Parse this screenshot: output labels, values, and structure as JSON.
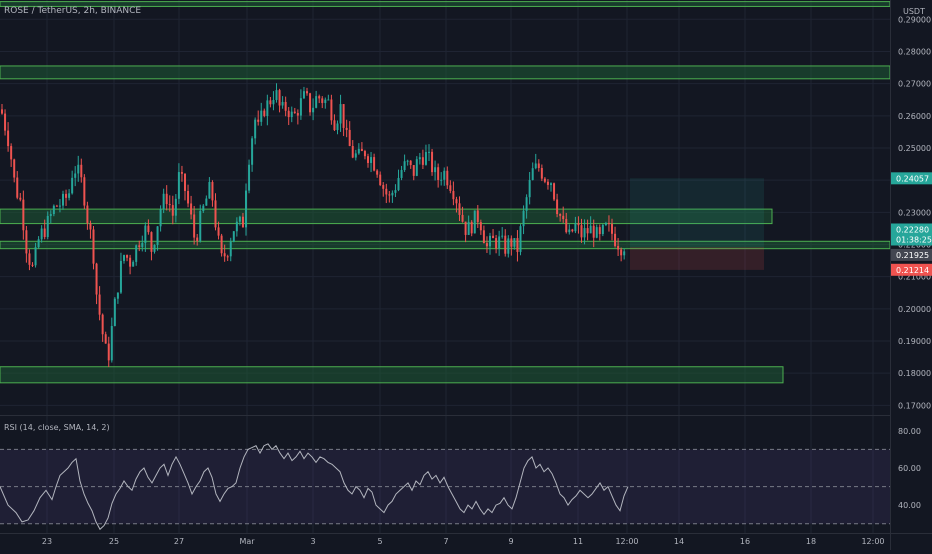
{
  "header": {
    "symbol": "ROSE / TetherUS, 2h, BINANCE",
    "currency": "USDT"
  },
  "colors": {
    "background": "#131722",
    "grid": "#1f2433",
    "up": "#26a69a",
    "down": "#ef5350",
    "zone_fill": "#1e5a35",
    "zone_stroke": "#4caf50",
    "rsi": "#b2b5be",
    "rsi_band": "#7e57c2",
    "axis_text": "#b2b5be"
  },
  "chart_data": [
    {
      "type": "candlestick",
      "title": "ROSE / TetherUS, 2h, BINANCE",
      "ylim": [
        0.167,
        0.296
      ],
      "y_ticks": [
        "0.29000",
        "0.28000",
        "0.27000",
        "0.26000",
        "0.25000",
        "0.24000",
        "0.23000",
        "0.22000",
        "0.21000",
        "0.20000",
        "0.19000",
        "0.18000",
        "0.17000"
      ],
      "x_ticks": [
        "23",
        "25",
        "27",
        "Mar",
        "3",
        "5",
        "7",
        "9",
        "11",
        "12:00",
        "14",
        "16",
        "18",
        "12:00"
      ],
      "zones": [
        {
          "from": 0.294,
          "to": 0.2955,
          "end": "full"
        },
        {
          "from": 0.2715,
          "to": 0.2755,
          "end": "full"
        },
        {
          "from": 0.2265,
          "to": 0.231,
          "end": "partial"
        },
        {
          "from": 0.2187,
          "to": 0.221,
          "end": "full"
        },
        {
          "from": 0.177,
          "to": 0.182,
          "end": "partial"
        }
      ],
      "position": {
        "entry": 0.2192,
        "target": 0.2406,
        "stop": 0.2121
      },
      "price_labels": [
        {
          "text": "0.24057",
          "value": 0.24057,
          "kind": "target"
        },
        {
          "text": "0.22280",
          "value": 0.2228,
          "kind": "last"
        },
        {
          "text": "01:38:25",
          "value": 0.2228,
          "kind": "countdown"
        },
        {
          "text": "0.21925",
          "value": 0.21925,
          "kind": "entry"
        },
        {
          "text": "0.21214",
          "value": 0.21214,
          "kind": "stop"
        }
      ],
      "price_path": [
        [
          0,
          0.262
        ],
        [
          8,
          0.252
        ],
        [
          14,
          0.238
        ],
        [
          20,
          0.233
        ],
        [
          26,
          0.218
        ],
        [
          32,
          0.212
        ],
        [
          38,
          0.222
        ],
        [
          46,
          0.226
        ],
        [
          54,
          0.232
        ],
        [
          62,
          0.233
        ],
        [
          68,
          0.236
        ],
        [
          72,
          0.244
        ],
        [
          76,
          0.243
        ],
        [
          82,
          0.238
        ],
        [
          86,
          0.229
        ],
        [
          92,
          0.219
        ],
        [
          96,
          0.203
        ],
        [
          100,
          0.196
        ],
        [
          104,
          0.187
        ],
        [
          108,
          0.186
        ],
        [
          112,
          0.197
        ],
        [
          116,
          0.206
        ],
        [
          120,
          0.213
        ],
        [
          124,
          0.218
        ],
        [
          128,
          0.214
        ],
        [
          134,
          0.218
        ],
        [
          140,
          0.223
        ],
        [
          146,
          0.225
        ],
        [
          150,
          0.218
        ],
        [
          154,
          0.223
        ],
        [
          160,
          0.232
        ],
        [
          166,
          0.235
        ],
        [
          172,
          0.229
        ],
        [
          178,
          0.241
        ],
        [
          184,
          0.237
        ],
        [
          190,
          0.228
        ],
        [
          194,
          0.221
        ],
        [
          198,
          0.226
        ],
        [
          204,
          0.233
        ],
        [
          210,
          0.238
        ],
        [
          214,
          0.228
        ],
        [
          220,
          0.215
        ],
        [
          226,
          0.218
        ],
        [
          232,
          0.225
        ],
        [
          238,
          0.226
        ],
        [
          242,
          0.227
        ],
        [
          246,
          0.243
        ],
        [
          250,
          0.252
        ],
        [
          254,
          0.259
        ],
        [
          258,
          0.255
        ],
        [
          262,
          0.262
        ],
        [
          268,
          0.264
        ],
        [
          274,
          0.268
        ],
        [
          280,
          0.261
        ],
        [
          286,
          0.263
        ],
        [
          292,
          0.259
        ],
        [
          298,
          0.263
        ],
        [
          304,
          0.266
        ],
        [
          310,
          0.262
        ],
        [
          316,
          0.266
        ],
        [
          322,
          0.265
        ],
        [
          328,
          0.264
        ],
        [
          334,
          0.258
        ],
        [
          340,
          0.263
        ],
        [
          346,
          0.252
        ],
        [
          352,
          0.248
        ],
        [
          358,
          0.247
        ],
        [
          364,
          0.249
        ],
        [
          370,
          0.247
        ],
        [
          376,
          0.244
        ],
        [
          382,
          0.238
        ],
        [
          388,
          0.234
        ],
        [
          394,
          0.238
        ],
        [
          400,
          0.243
        ],
        [
          406,
          0.245
        ],
        [
          412,
          0.242
        ],
        [
          418,
          0.247
        ],
        [
          424,
          0.248
        ],
        [
          430,
          0.245
        ],
        [
          436,
          0.24
        ],
        [
          442,
          0.243
        ],
        [
          448,
          0.24
        ],
        [
          454,
          0.236
        ],
        [
          460,
          0.229
        ],
        [
          466,
          0.224
        ],
        [
          472,
          0.227
        ],
        [
          478,
          0.229
        ],
        [
          482,
          0.224
        ],
        [
          486,
          0.219
        ],
        [
          492,
          0.221
        ],
        [
          498,
          0.221
        ],
        [
          504,
          0.219
        ],
        [
          510,
          0.221
        ],
        [
          516,
          0.218
        ],
        [
          520,
          0.225
        ],
        [
          526,
          0.235
        ],
        [
          532,
          0.243
        ],
        [
          538,
          0.244
        ],
        [
          544,
          0.241
        ],
        [
          550,
          0.24
        ],
        [
          556,
          0.232
        ],
        [
          562,
          0.226
        ],
        [
          568,
          0.222
        ],
        [
          574,
          0.226
        ],
        [
          580,
          0.223
        ],
        [
          586,
          0.224
        ],
        [
          592,
          0.225
        ],
        [
          598,
          0.221
        ],
        [
          604,
          0.225
        ],
        [
          610,
          0.224
        ],
        [
          616,
          0.221
        ],
        [
          622,
          0.219
        ],
        [
          626,
          0.2228
        ]
      ]
    },
    {
      "type": "line",
      "title": "RSI (14, close, SMA, 14, 2)",
      "ylim": [
        25,
        88
      ],
      "y_ticks": [
        "80.00",
        "60.00",
        "40.00"
      ],
      "bands": [
        70,
        50,
        30
      ],
      "values_path": [
        [
          0,
          50
        ],
        [
          8,
          40
        ],
        [
          16,
          36
        ],
        [
          22,
          31
        ],
        [
          28,
          32
        ],
        [
          34,
          37
        ],
        [
          40,
          44
        ],
        [
          46,
          48
        ],
        [
          52,
          43
        ],
        [
          56,
          50
        ],
        [
          60,
          56
        ],
        [
          64,
          58
        ],
        [
          68,
          60
        ],
        [
          72,
          63
        ],
        [
          76,
          65
        ],
        [
          80,
          53
        ],
        [
          84,
          46
        ],
        [
          88,
          41
        ],
        [
          92,
          37
        ],
        [
          96,
          31
        ],
        [
          100,
          27
        ],
        [
          104,
          29
        ],
        [
          108,
          33
        ],
        [
          112,
          41
        ],
        [
          116,
          46
        ],
        [
          120,
          49
        ],
        [
          124,
          53
        ],
        [
          128,
          50
        ],
        [
          132,
          48
        ],
        [
          136,
          54
        ],
        [
          140,
          58
        ],
        [
          144,
          60
        ],
        [
          148,
          55
        ],
        [
          152,
          52
        ],
        [
          156,
          56
        ],
        [
          160,
          60
        ],
        [
          164,
          62
        ],
        [
          168,
          56
        ],
        [
          172,
          62
        ],
        [
          176,
          66
        ],
        [
          180,
          62
        ],
        [
          184,
          57
        ],
        [
          188,
          52
        ],
        [
          192,
          46
        ],
        [
          196,
          50
        ],
        [
          200,
          53
        ],
        [
          204,
          58
        ],
        [
          208,
          60
        ],
        [
          212,
          55
        ],
        [
          216,
          46
        ],
        [
          220,
          42
        ],
        [
          224,
          46
        ],
        [
          228,
          49
        ],
        [
          232,
          50
        ],
        [
          236,
          52
        ],
        [
          240,
          60
        ],
        [
          244,
          66
        ],
        [
          248,
          70
        ],
        [
          252,
          71
        ],
        [
          256,
          72
        ],
        [
          260,
          68
        ],
        [
          264,
          72
        ],
        [
          268,
          73
        ],
        [
          272,
          70
        ],
        [
          276,
          72
        ],
        [
          280,
          68
        ],
        [
          284,
          65
        ],
        [
          288,
          68
        ],
        [
          292,
          64
        ],
        [
          296,
          66
        ],
        [
          300,
          69
        ],
        [
          304,
          65
        ],
        [
          308,
          68
        ],
        [
          312,
          66
        ],
        [
          316,
          63
        ],
        [
          320,
          66
        ],
        [
          324,
          65
        ],
        [
          328,
          63
        ],
        [
          332,
          62
        ],
        [
          336,
          60
        ],
        [
          340,
          58
        ],
        [
          344,
          52
        ],
        [
          348,
          48
        ],
        [
          352,
          46
        ],
        [
          356,
          50
        ],
        [
          360,
          48
        ],
        [
          364,
          44
        ],
        [
          368,
          49
        ],
        [
          372,
          47
        ],
        [
          376,
          40
        ],
        [
          380,
          38
        ],
        [
          384,
          36
        ],
        [
          388,
          40
        ],
        [
          392,
          42
        ],
        [
          396,
          46
        ],
        [
          400,
          48
        ],
        [
          404,
          50
        ],
        [
          408,
          52
        ],
        [
          412,
          48
        ],
        [
          416,
          53
        ],
        [
          420,
          51
        ],
        [
          424,
          56
        ],
        [
          428,
          58
        ],
        [
          432,
          54
        ],
        [
          436,
          56
        ],
        [
          440,
          52
        ],
        [
          444,
          55
        ],
        [
          448,
          50
        ],
        [
          452,
          46
        ],
        [
          456,
          42
        ],
        [
          460,
          38
        ],
        [
          464,
          36
        ],
        [
          468,
          40
        ],
        [
          472,
          38
        ],
        [
          476,
          42
        ],
        [
          480,
          38
        ],
        [
          484,
          35
        ],
        [
          488,
          38
        ],
        [
          492,
          36
        ],
        [
          496,
          40
        ],
        [
          500,
          41
        ],
        [
          504,
          44
        ],
        [
          508,
          40
        ],
        [
          512,
          38
        ],
        [
          516,
          44
        ],
        [
          520,
          52
        ],
        [
          524,
          60
        ],
        [
          528,
          64
        ],
        [
          532,
          66
        ],
        [
          536,
          60
        ],
        [
          540,
          62
        ],
        [
          544,
          58
        ],
        [
          548,
          60
        ],
        [
          552,
          57
        ],
        [
          556,
          52
        ],
        [
          560,
          46
        ],
        [
          564,
          44
        ],
        [
          568,
          40
        ],
        [
          572,
          43
        ],
        [
          576,
          45
        ],
        [
          580,
          48
        ],
        [
          584,
          46
        ],
        [
          588,
          44
        ],
        [
          592,
          46
        ],
        [
          596,
          49
        ],
        [
          600,
          52
        ],
        [
          604,
          48
        ],
        [
          608,
          50
        ],
        [
          612,
          45
        ],
        [
          616,
          40
        ],
        [
          620,
          37
        ],
        [
          624,
          45
        ],
        [
          628,
          50
        ]
      ]
    }
  ]
}
